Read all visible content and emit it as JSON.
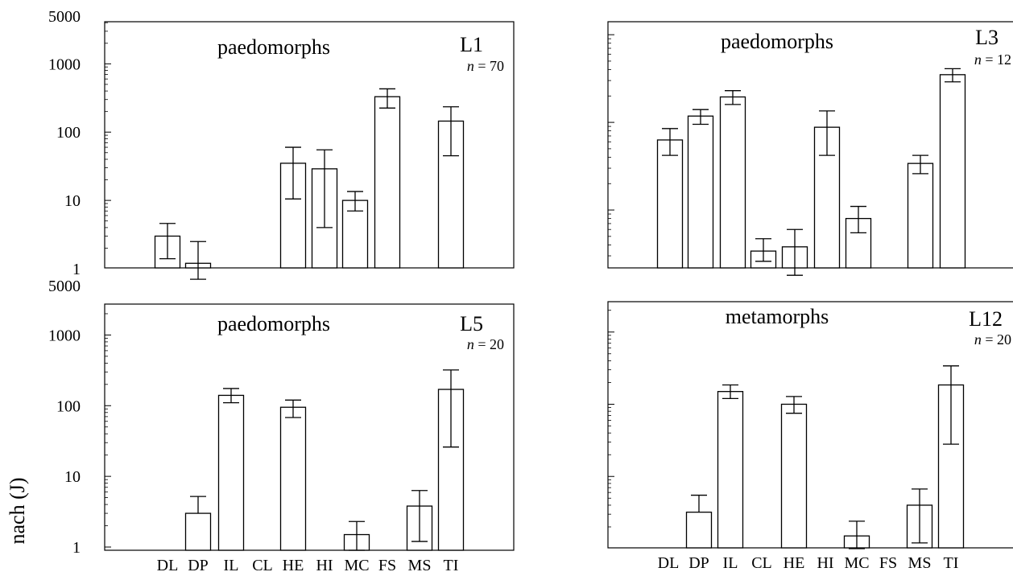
{
  "figure": {
    "ylabel_fragment": "nach (J)"
  },
  "chart_data": [
    {
      "type": "bar",
      "title": "paedomorphs",
      "population": "L1",
      "n_label": "n = 70",
      "n_value": 70,
      "y_scale": "log",
      "ylim": [
        1,
        5000
      ],
      "y_tick_labels": [
        "5000",
        "1000",
        "100",
        "10",
        "1"
      ],
      "x_tick_labels": [],
      "categories": [
        "DL",
        "DP",
        "IL",
        "CL",
        "HE",
        "HI",
        "MC",
        "FS",
        "MS",
        "TI"
      ],
      "values": [
        3,
        1.2,
        null,
        null,
        35,
        29,
        10,
        330,
        null,
        145
      ],
      "error_low": [
        1.4,
        0.7,
        null,
        null,
        10.5,
        4,
        7,
        225,
        null,
        45
      ],
      "error_high": [
        4.6,
        2.5,
        null,
        null,
        60,
        55,
        13.5,
        430,
        null,
        235
      ]
    },
    {
      "type": "bar",
      "title": "paedomorphs",
      "population": "L3",
      "n_label": "n = 12",
      "n_value": 12,
      "y_scale": "log",
      "ylim": [
        1,
        5000
      ],
      "y_tick_labels": [],
      "x_tick_labels": [],
      "categories": [
        "DL",
        "DP",
        "IL",
        "CL",
        "HE",
        "HI",
        "MC",
        "FS",
        "MS",
        "TI"
      ],
      "values": [
        63,
        118,
        195,
        3.4,
        3.8,
        88,
        8,
        null,
        34,
        350
      ],
      "error_low": [
        42,
        95,
        160,
        2.6,
        1.8,
        42,
        5.5,
        null,
        26,
        290
      ],
      "error_high": [
        85,
        140,
        230,
        4.7,
        6,
        135,
        11,
        null,
        42,
        410
      ]
    },
    {
      "type": "bar",
      "title": "paedomorphs",
      "population": "L5",
      "n_label": "n = 20",
      "n_value": 20,
      "y_scale": "log",
      "ylim": [
        1,
        5000
      ],
      "y_tick_labels": [
        "5000",
        "1000",
        "100",
        "10",
        "1"
      ],
      "x_tick_labels": [
        "DL",
        "DP",
        "IL",
        "CL",
        "HE",
        "HI",
        "MC",
        "FS",
        "MS",
        "TI"
      ],
      "categories": [
        "DL",
        "DP",
        "IL",
        "CL",
        "HE",
        "HI",
        "MC",
        "FS",
        "MS",
        "TI"
      ],
      "values": [
        null,
        3,
        140,
        null,
        95,
        null,
        1.5,
        null,
        3.8,
        170
      ],
      "error_low": [
        null,
        null,
        110,
        null,
        68,
        null,
        0.9,
        null,
        1.2,
        26
      ],
      "error_high": [
        null,
        5.2,
        175,
        null,
        120,
        null,
        2.3,
        null,
        6.3,
        320
      ]
    },
    {
      "type": "bar",
      "title": "metamorphs",
      "population": "L12",
      "n_label": "n = 20",
      "n_value": 20,
      "y_scale": "log",
      "ylim": [
        1,
        5000
      ],
      "y_tick_labels": [],
      "x_tick_labels": [
        "DL",
        "DP",
        "IL",
        "CL",
        "HE",
        "HI",
        "MC",
        "FS",
        "MS",
        "TI"
      ],
      "categories": [
        "DL",
        "DP",
        "IL",
        "CL",
        "HE",
        "HI",
        "MC",
        "FS",
        "MS",
        "TI"
      ],
      "values": [
        null,
        3.2,
        150,
        null,
        100,
        null,
        1.5,
        null,
        4,
        185
      ],
      "error_low": [
        null,
        null,
        120,
        null,
        75,
        null,
        1,
        null,
        1.2,
        28
      ],
      "error_high": [
        null,
        5.5,
        185,
        null,
        128,
        null,
        2.4,
        null,
        6.7,
        340
      ]
    }
  ]
}
